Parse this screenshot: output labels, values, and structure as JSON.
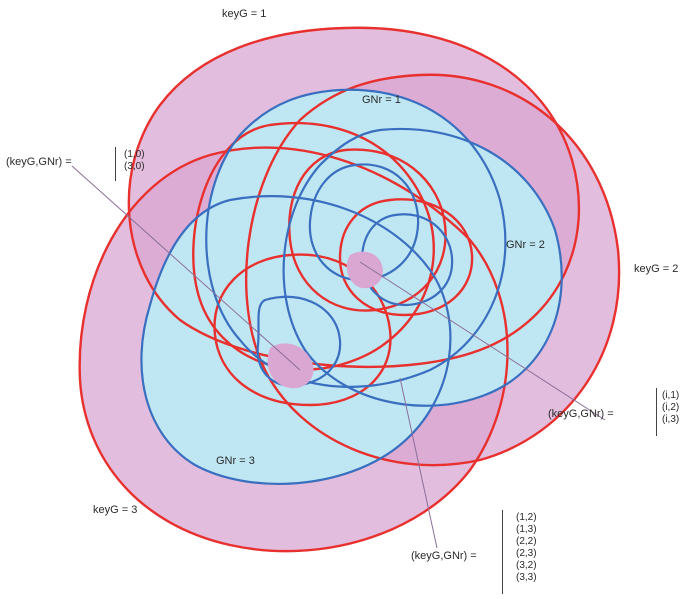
{
  "labels": {
    "keyG1": "keyG = 1",
    "keyG2": "keyG = 2",
    "keyG3": "keyG = 3",
    "gnr1": "GNr = 1",
    "gnr2": "GNr = 2",
    "gnr3": "GNr = 3"
  },
  "callouts": {
    "top_left": {
      "label": "(keyG,GNr) =",
      "values": [
        "(1,0)",
        "(3,0)"
      ]
    },
    "right": {
      "label": "(keyG,GNr) =",
      "values": [
        "(i,1)",
        "(i,2)",
        "(i,3)"
      ]
    },
    "bottom": {
      "label": "(keyG,GNr) =",
      "values": [
        "(1,2)",
        "(1,3)",
        "(2,2)",
        "(2,3)",
        "(3,2)",
        "(3,3)"
      ]
    }
  },
  "colors": {
    "outer_fill": "#d9a7d1",
    "inner_fill": "#bfe6f3",
    "red_stroke": "#e8312f",
    "blue_stroke": "#3a6fc0",
    "overlap_fill": "#d9a7d1",
    "leader_line": "#8a6f9a"
  }
}
